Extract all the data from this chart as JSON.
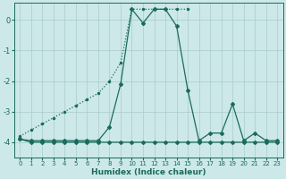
{
  "xlabel": "Humidex (Indice chaleur)",
  "background_color": "#cce8e8",
  "grid_color": "#aacccc",
  "line_color": "#1a6b5e",
  "xlim": [
    -0.5,
    23.5
  ],
  "ylim": [
    -4.5,
    0.55
  ],
  "yticks": [
    0,
    -1,
    -2,
    -3,
    -4
  ],
  "xticks": [
    0,
    1,
    2,
    3,
    4,
    5,
    6,
    7,
    8,
    9,
    10,
    11,
    12,
    13,
    14,
    15,
    16,
    17,
    18,
    19,
    20,
    21,
    22,
    23
  ],
  "line1_x": [
    0,
    1,
    2,
    3,
    4,
    5,
    6,
    7,
    8,
    9,
    10,
    11,
    12,
    13,
    14,
    15
  ],
  "line1_y": [
    -3.8,
    -3.6,
    -3.4,
    -3.2,
    -3.0,
    -2.8,
    -2.6,
    -2.4,
    -2.0,
    -1.4,
    0.35,
    0.35,
    0.35,
    0.35,
    0.35,
    0.35
  ],
  "line2_x": [
    0,
    1,
    2,
    3,
    4,
    5,
    6,
    7,
    8,
    9,
    10,
    11,
    12,
    13,
    14,
    15,
    16,
    17,
    18,
    19,
    20,
    21,
    22,
    23
  ],
  "line2_y": [
    -3.9,
    -3.95,
    -3.95,
    -3.95,
    -3.95,
    -3.95,
    -3.95,
    -3.95,
    -3.5,
    -2.1,
    0.35,
    -0.1,
    0.35,
    0.35,
    -0.2,
    -2.3,
    -3.95,
    -3.7,
    -3.7,
    -2.75,
    -3.95,
    -3.7,
    -3.95,
    -3.95
  ],
  "line3_x": [
    0,
    1,
    2,
    3,
    4,
    5,
    6,
    7,
    8,
    9,
    10,
    11,
    12,
    13,
    14,
    15,
    16,
    17,
    18,
    19,
    20,
    21,
    22,
    23
  ],
  "line3_y": [
    -3.9,
    -4.0,
    -4.0,
    -4.0,
    -4.0,
    -4.0,
    -4.0,
    -4.0,
    -4.0,
    -4.0,
    -4.0,
    -4.0,
    -4.0,
    -4.0,
    -4.0,
    -4.0,
    -4.0,
    -4.0,
    -4.0,
    -4.0,
    -4.0,
    -4.0,
    -4.0,
    -4.0
  ]
}
